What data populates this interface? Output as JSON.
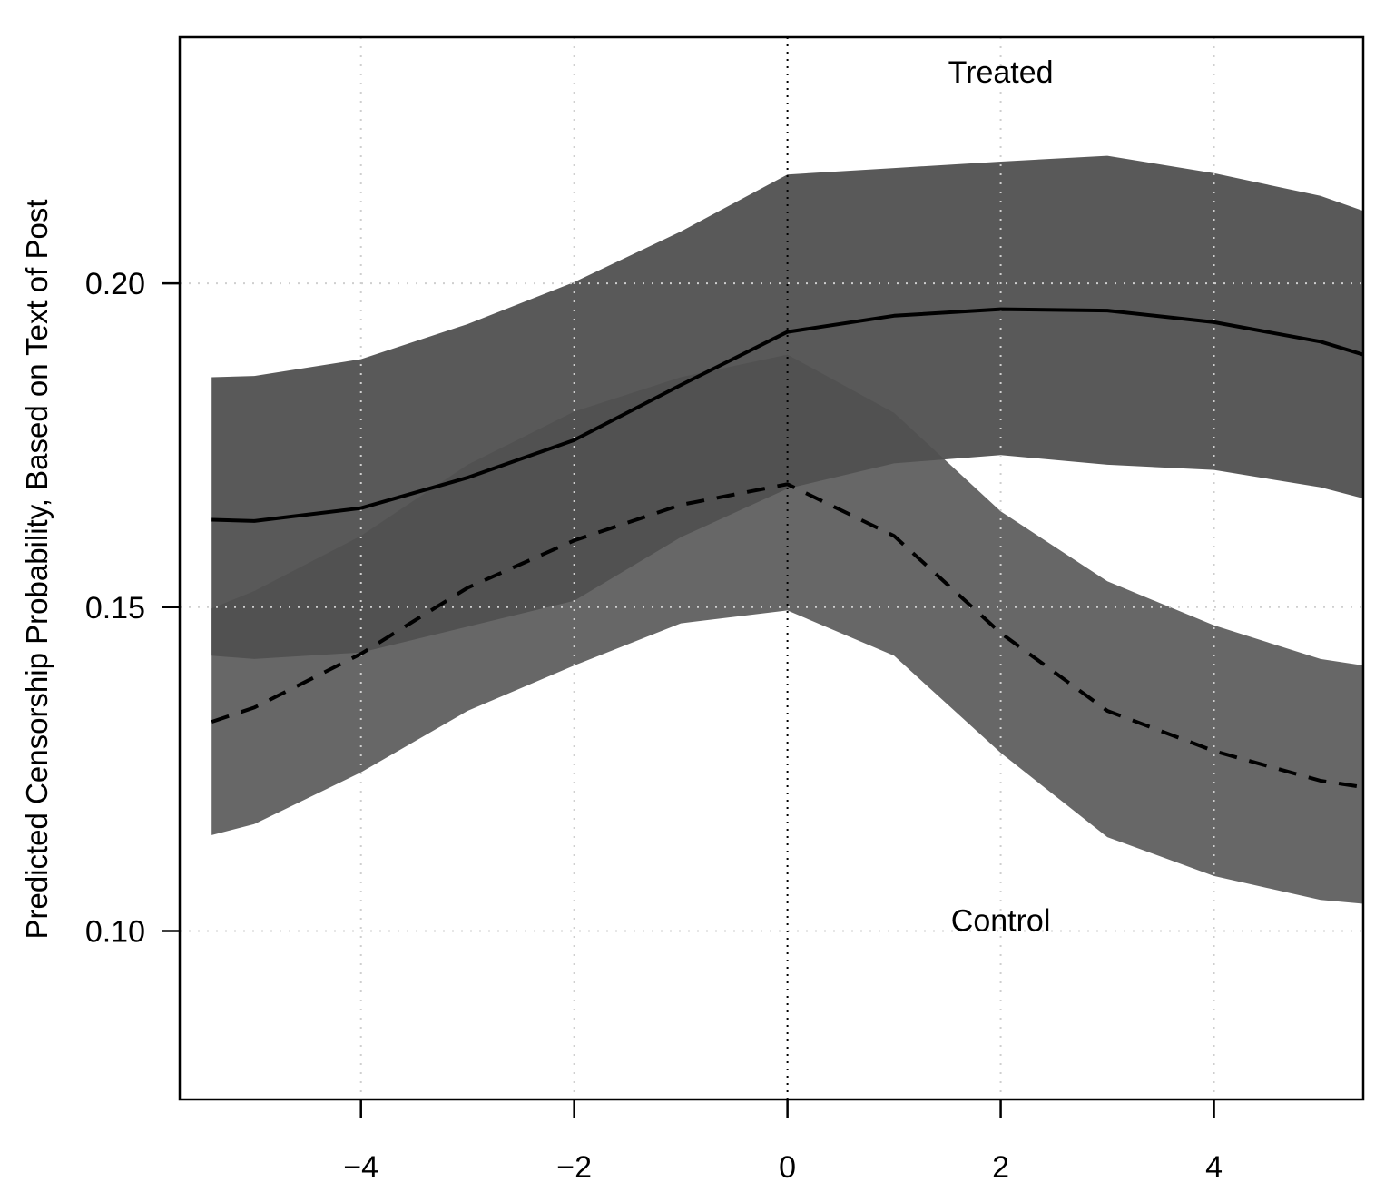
{
  "chart_data": {
    "type": "line",
    "title": "",
    "xlabel": "",
    "ylabel": "Predicted Censorship Probability, Based on Text of Post",
    "xlim": [
      -5.7,
      5.4
    ],
    "ylim": [
      0.074,
      0.238
    ],
    "x_ticks": [
      -4,
      -2,
      0,
      2,
      4
    ],
    "x_tick_labels": [
      "−4",
      "−2",
      "0",
      "2",
      "4"
    ],
    "y_ticks": [
      0.1,
      0.15,
      0.2
    ],
    "y_tick_labels": [
      "0.10",
      "0.15",
      "0.20"
    ],
    "grid": true,
    "vline_x": 0,
    "annotations": [
      {
        "text": "Treated",
        "x": 2,
        "y": 0.231
      },
      {
        "text": "Control",
        "x": 2,
        "y": 0.1
      }
    ],
    "series": [
      {
        "line_style": "solid",
        "band_color": "#404040",
        "x": [
          -5.4,
          -5,
          -4,
          -3,
          -2,
          -1,
          0,
          1,
          2,
          3,
          4,
          5,
          5.4
        ],
        "y": [
          0.1635,
          0.1633,
          0.1653,
          0.17,
          0.1758,
          0.1843,
          0.1925,
          0.195,
          0.196,
          0.1958,
          0.194,
          0.191,
          0.189
        ],
        "lower": [
          0.1425,
          0.142,
          0.143,
          0.147,
          0.151,
          0.1608,
          0.1683,
          0.1722,
          0.1735,
          0.172,
          0.1712,
          0.1685,
          0.1668
        ],
        "upper": [
          0.1855,
          0.1857,
          0.1883,
          0.1937,
          0.2002,
          0.208,
          0.2168,
          0.2178,
          0.2188,
          0.2197,
          0.217,
          0.2135,
          0.2112
        ]
      },
      {
        "line_style": "dashed",
        "band_color": "#505050",
        "x": [
          -5.4,
          -5,
          -4,
          -3,
          -2,
          -1,
          0,
          1,
          2,
          3,
          4,
          5,
          5.4
        ],
        "y": [
          0.1323,
          0.1345,
          0.1428,
          0.153,
          0.1603,
          0.1658,
          0.169,
          0.161,
          0.146,
          0.134,
          0.1278,
          0.1232,
          0.1222
        ],
        "lower": [
          0.1148,
          0.1165,
          0.1245,
          0.134,
          0.141,
          0.1475,
          0.1495,
          0.1425,
          0.1275,
          0.1145,
          0.1085,
          0.1048,
          0.1042
        ],
        "upper": [
          0.1498,
          0.1525,
          0.161,
          0.172,
          0.1802,
          0.1855,
          0.189,
          0.18,
          0.1648,
          0.154,
          0.1472,
          0.142,
          0.141
        ]
      }
    ]
  }
}
